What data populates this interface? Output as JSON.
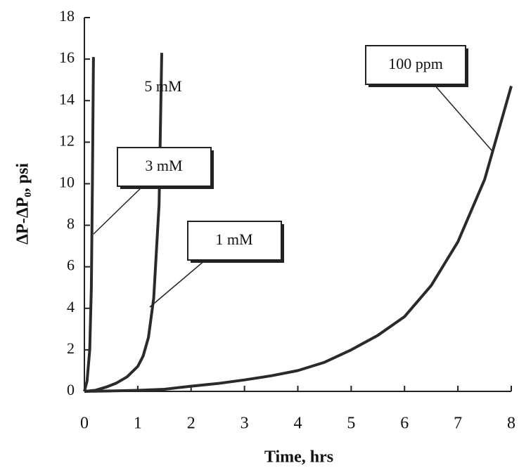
{
  "chart_data": {
    "type": "line",
    "xlabel": "Time, hrs",
    "ylabel": "ΔP-ΔP₀, psi",
    "xlim": [
      0,
      8
    ],
    "ylim": [
      0,
      18
    ],
    "xticks": [
      0,
      1,
      2,
      3,
      4,
      5,
      6,
      7,
      8
    ],
    "yticks": [
      0,
      2,
      4,
      6,
      8,
      10,
      12,
      14,
      16,
      18
    ],
    "grid": false,
    "series": [
      {
        "color": "#2a2a2a",
        "x": [
          0,
          0.05,
          0.1,
          0.13,
          0.15,
          0.17
        ],
        "values": [
          0,
          0.5,
          2,
          5,
          10,
          16.1
        ]
      },
      {
        "color": "#2a2a2a",
        "x": [
          0,
          0.2,
          0.4,
          0.6,
          0.8,
          1.0,
          1.1,
          1.2,
          1.3,
          1.4,
          1.45
        ],
        "values": [
          0,
          0.05,
          0.2,
          0.4,
          0.7,
          1.2,
          1.7,
          2.6,
          4.5,
          9,
          16.3
        ]
      },
      {
        "color": "#2a2a2a",
        "x": [
          0,
          0.5,
          1,
          1.5,
          2,
          2.5,
          3,
          3.5,
          4,
          4.5,
          5,
          5.5,
          6,
          6.5,
          7,
          7.5,
          8
        ],
        "values": [
          0,
          0.02,
          0.05,
          0.1,
          0.25,
          0.38,
          0.55,
          0.75,
          1.0,
          1.4,
          2.0,
          2.7,
          3.6,
          5.1,
          7.2,
          10.2,
          14.7
        ]
      }
    ],
    "annotations": [
      "5 mM",
      "3 mM",
      "1 mM",
      "100 ppm"
    ]
  }
}
